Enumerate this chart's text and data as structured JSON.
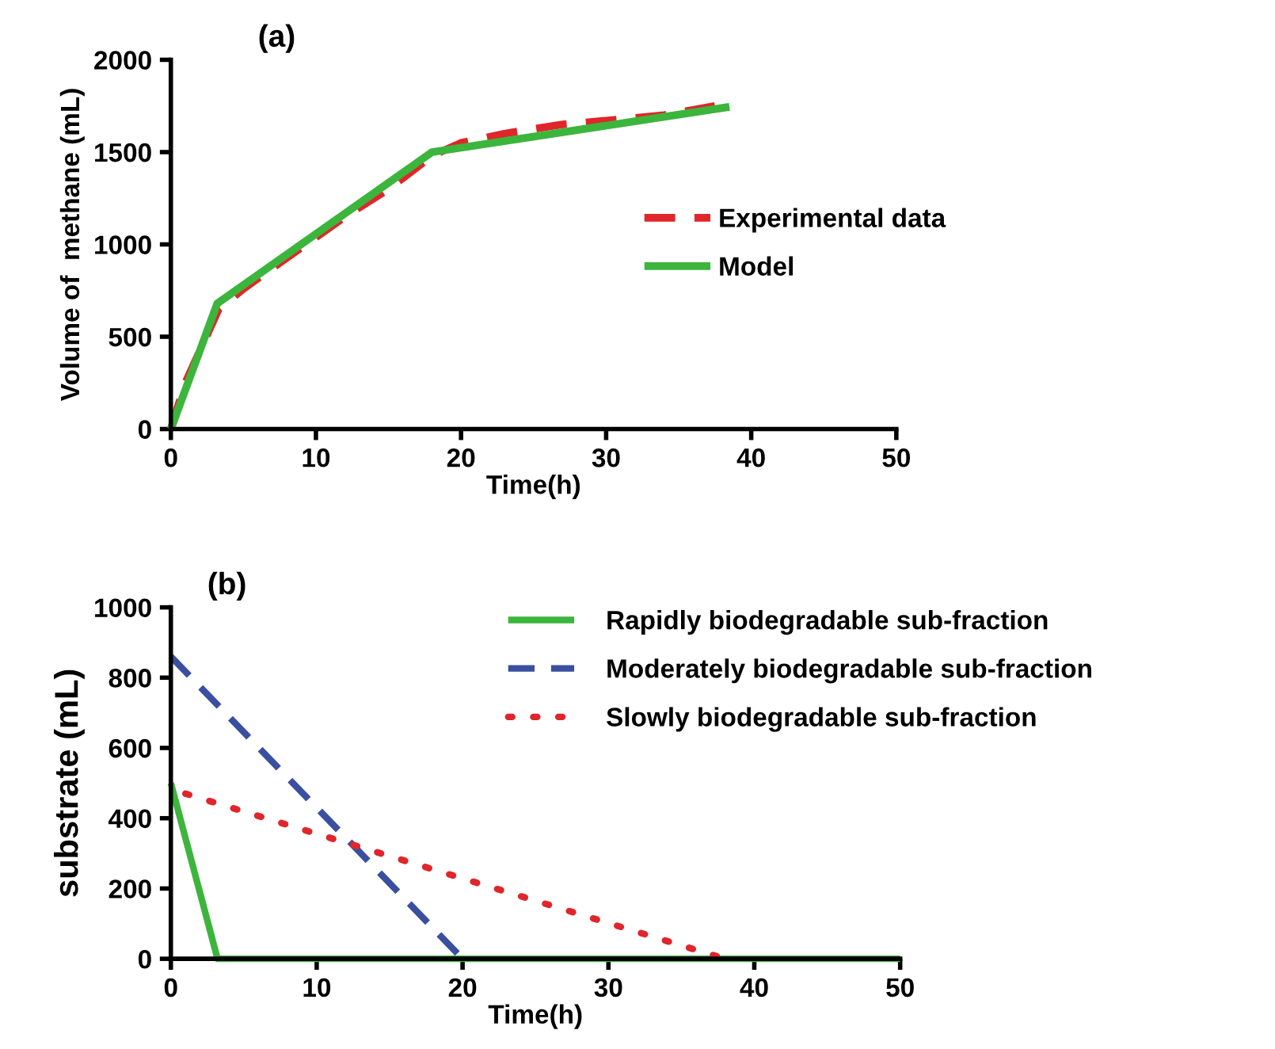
{
  "chart_data": [
    {
      "type": "line",
      "title": "(a)",
      "xlabel": "Time(h)",
      "ylabel": "Volume of  methane (mL)",
      "xlim": [
        0,
        50
      ],
      "ylim": [
        0,
        2000
      ],
      "xticks": [
        0,
        10,
        20,
        30,
        40,
        50
      ],
      "yticks": [
        0,
        500,
        1000,
        1500,
        2000
      ],
      "grid": false,
      "legend": "right",
      "marker": "none",
      "series": [
        {
          "name": "Experimental data",
          "color": "#e0262a",
          "line_style": "dashed",
          "x": [
            0,
            1,
            3.3,
            5,
            7.5,
            12,
            15,
            18,
            20,
            23,
            27,
            30,
            34,
            37.5
          ],
          "values": [
            0,
            250,
            650,
            760,
            900,
            1150,
            1300,
            1480,
            1550,
            1600,
            1650,
            1670,
            1700,
            1750
          ]
        },
        {
          "name": "Model",
          "color": "#3cb53c",
          "line_style": "solid",
          "x": [
            0,
            3.2,
            18,
            38.5
          ],
          "values": [
            0,
            680,
            1500,
            1745
          ]
        }
      ]
    },
    {
      "type": "line",
      "title": "(b)",
      "xlabel": "Time(h)",
      "ylabel": "substrate (mL)",
      "xlim": [
        0,
        50
      ],
      "ylim": [
        0,
        1000
      ],
      "xticks": [
        0,
        10,
        20,
        30,
        40,
        50
      ],
      "yticks": [
        0,
        200,
        400,
        600,
        800,
        1000
      ],
      "grid": false,
      "legend": "top right",
      "marker": "none",
      "series": [
        {
          "name": "Rapidly biodegradable sub-fraction",
          "color": "#3cb53c",
          "line_style": "solid",
          "x": [
            0,
            3.2,
            50
          ],
          "values": [
            500,
            0,
            0
          ]
        },
        {
          "name": "Moderately biodegradable sub-fraction",
          "color": "#3a4fa0",
          "line_style": "dashed",
          "x": [
            0,
            20
          ],
          "values": [
            860,
            0
          ]
        },
        {
          "name": "Slowly biodegradable sub-fraction",
          "color": "#e0262a",
          "line_style": "dotted",
          "x": [
            1,
            38
          ],
          "values": [
            470,
            0
          ]
        }
      ]
    }
  ]
}
